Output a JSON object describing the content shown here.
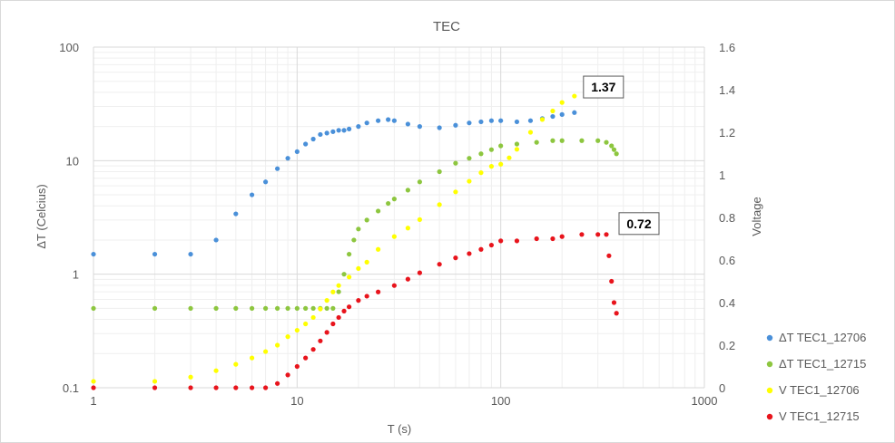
{
  "chart_data": {
    "type": "scatter",
    "title": "TEC",
    "xlabel": "T (s)",
    "ylabel_left": "ΔT (Celcius)",
    "ylabel_right": "Voltage",
    "x_scale": "log",
    "y_left_scale": "log",
    "xlim": [
      1,
      1000
    ],
    "ylim_left": [
      0.1,
      100
    ],
    "ylim_right": [
      0,
      1.6
    ],
    "x_ticks": [
      "1",
      "10",
      "100",
      "1000"
    ],
    "y_left_ticks": [
      "0.1",
      "1",
      "10",
      "100"
    ],
    "y_right_ticks": [
      "0",
      "0.2",
      "0.4",
      "0.6",
      "0.8",
      "1",
      "1.2",
      "1.4",
      "1.6"
    ],
    "grid": true,
    "legend_position": "right",
    "annotations": [
      {
        "text": "1.37",
        "series": "V TEC1_12706",
        "x": 230,
        "y": 1.37
      },
      {
        "text": "0.72",
        "series": "V TEC1_12715",
        "x": 330,
        "y": 0.72
      }
    ],
    "series": [
      {
        "name": "ΔT TEC1_12706",
        "axis": "left",
        "color": "#4a90d9",
        "points": [
          [
            1,
            1.5
          ],
          [
            2,
            1.5
          ],
          [
            3,
            1.5
          ],
          [
            4,
            2.0
          ],
          [
            5,
            3.4
          ],
          [
            6,
            5.0
          ],
          [
            7,
            6.5
          ],
          [
            8,
            8.5
          ],
          [
            9,
            10.5
          ],
          [
            10,
            12
          ],
          [
            11,
            14
          ],
          [
            12,
            15.5
          ],
          [
            13,
            17
          ],
          [
            14,
            17.5
          ],
          [
            15,
            18
          ],
          [
            16,
            18.5
          ],
          [
            17,
            18.5
          ],
          [
            18,
            19
          ],
          [
            20,
            20
          ],
          [
            22,
            21.5
          ],
          [
            25,
            22.5
          ],
          [
            28,
            23
          ],
          [
            30,
            22.5
          ],
          [
            35,
            21
          ],
          [
            40,
            20
          ],
          [
            50,
            19.5
          ],
          [
            60,
            20.5
          ],
          [
            70,
            21.5
          ],
          [
            80,
            22
          ],
          [
            90,
            22.5
          ],
          [
            100,
            22.5
          ],
          [
            120,
            22
          ],
          [
            140,
            22.5
          ],
          [
            160,
            23.5
          ],
          [
            180,
            24.5
          ],
          [
            200,
            25.5
          ],
          [
            230,
            26.5
          ]
        ]
      },
      {
        "name": "ΔT TEC1_12715",
        "axis": "left",
        "color": "#8dc63f",
        "points": [
          [
            1,
            0.5
          ],
          [
            2,
            0.5
          ],
          [
            3,
            0.5
          ],
          [
            4,
            0.5
          ],
          [
            5,
            0.5
          ],
          [
            6,
            0.5
          ],
          [
            7,
            0.5
          ],
          [
            8,
            0.5
          ],
          [
            9,
            0.5
          ],
          [
            10,
            0.5
          ],
          [
            11,
            0.5
          ],
          [
            12,
            0.5
          ],
          [
            13,
            0.5
          ],
          [
            14,
            0.5
          ],
          [
            15,
            0.5
          ],
          [
            16,
            0.7
          ],
          [
            17,
            1.0
          ],
          [
            18,
            1.5
          ],
          [
            19,
            2.0
          ],
          [
            20,
            2.5
          ],
          [
            22,
            3.0
          ],
          [
            25,
            3.6
          ],
          [
            28,
            4.2
          ],
          [
            30,
            4.6
          ],
          [
            35,
            5.5
          ],
          [
            40,
            6.5
          ],
          [
            50,
            8.0
          ],
          [
            60,
            9.5
          ],
          [
            70,
            10.5
          ],
          [
            80,
            11.5
          ],
          [
            90,
            12.5
          ],
          [
            100,
            13.5
          ],
          [
            120,
            14.0
          ],
          [
            150,
            14.5
          ],
          [
            180,
            15
          ],
          [
            200,
            15
          ],
          [
            250,
            15
          ],
          [
            300,
            15
          ],
          [
            330,
            14.5
          ],
          [
            350,
            13.5
          ],
          [
            360,
            12.5
          ],
          [
            370,
            11.5
          ]
        ]
      },
      {
        "name": "V TEC1_12706",
        "axis": "right",
        "color": "#ffff00",
        "points": [
          [
            1,
            0.03
          ],
          [
            2,
            0.03
          ],
          [
            3,
            0.05
          ],
          [
            4,
            0.08
          ],
          [
            5,
            0.11
          ],
          [
            6,
            0.14
          ],
          [
            7,
            0.17
          ],
          [
            8,
            0.2
          ],
          [
            9,
            0.24
          ],
          [
            10,
            0.27
          ],
          [
            11,
            0.3
          ],
          [
            12,
            0.33
          ],
          [
            13,
            0.37
          ],
          [
            14,
            0.41
          ],
          [
            15,
            0.45
          ],
          [
            16,
            0.48
          ],
          [
            18,
            0.52
          ],
          [
            20,
            0.56
          ],
          [
            22,
            0.59
          ],
          [
            25,
            0.65
          ],
          [
            30,
            0.71
          ],
          [
            35,
            0.75
          ],
          [
            40,
            0.79
          ],
          [
            50,
            0.86
          ],
          [
            60,
            0.92
          ],
          [
            70,
            0.97
          ],
          [
            80,
            1.01
          ],
          [
            90,
            1.04
          ],
          [
            100,
            1.05
          ],
          [
            110,
            1.08
          ],
          [
            120,
            1.12
          ],
          [
            140,
            1.2
          ],
          [
            160,
            1.26
          ],
          [
            180,
            1.3
          ],
          [
            200,
            1.34
          ],
          [
            230,
            1.37
          ]
        ]
      },
      {
        "name": "V TEC1_12715",
        "axis": "right",
        "color": "#e8141c",
        "points": [
          [
            1,
            0
          ],
          [
            2,
            0
          ],
          [
            3,
            0
          ],
          [
            4,
            0
          ],
          [
            5,
            0
          ],
          [
            6,
            0
          ],
          [
            7,
            0
          ],
          [
            8,
            0.02
          ],
          [
            9,
            0.06
          ],
          [
            10,
            0.1
          ],
          [
            11,
            0.14
          ],
          [
            12,
            0.18
          ],
          [
            13,
            0.22
          ],
          [
            14,
            0.26
          ],
          [
            15,
            0.3
          ],
          [
            16,
            0.33
          ],
          [
            17,
            0.36
          ],
          [
            18,
            0.38
          ],
          [
            20,
            0.41
          ],
          [
            22,
            0.43
          ],
          [
            25,
            0.45
          ],
          [
            30,
            0.48
          ],
          [
            35,
            0.51
          ],
          [
            40,
            0.54
          ],
          [
            50,
            0.58
          ],
          [
            60,
            0.61
          ],
          [
            70,
            0.63
          ],
          [
            80,
            0.65
          ],
          [
            90,
            0.67
          ],
          [
            100,
            0.69
          ],
          [
            120,
            0.69
          ],
          [
            150,
            0.7
          ],
          [
            180,
            0.7
          ],
          [
            200,
            0.71
          ],
          [
            250,
            0.72
          ],
          [
            300,
            0.72
          ],
          [
            330,
            0.72
          ],
          [
            340,
            0.62
          ],
          [
            350,
            0.5
          ],
          [
            360,
            0.4
          ],
          [
            370,
            0.35
          ]
        ]
      }
    ]
  }
}
